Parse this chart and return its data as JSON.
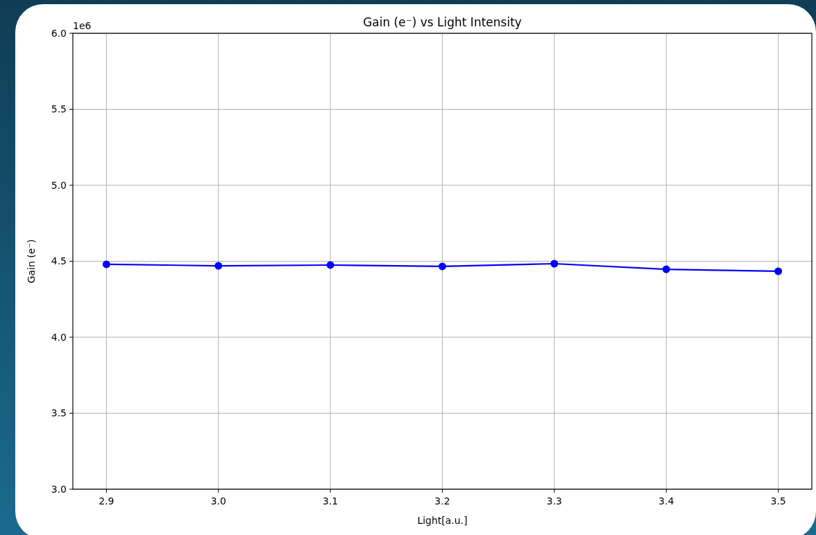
{
  "chart_data": {
    "type": "line",
    "title": "Gain (e⁻) vs Light Intensity",
    "xlabel": "Light[a.u.]",
    "ylabel": "Gain (e⁻)",
    "x": [
      2.9,
      3.0,
      3.1,
      3.2,
      3.3,
      3.4,
      3.5
    ],
    "series": [
      {
        "color": "#0000ff",
        "values": [
          4.48,
          4.47,
          4.475,
          4.466,
          4.484,
          4.447,
          4.434
        ]
      }
    ],
    "xlim": [
      2.87,
      3.53
    ],
    "xticks": [
      {
        "value": 2.9,
        "label": "2.9"
      },
      {
        "value": 3.0,
        "label": "3.0"
      },
      {
        "value": 3.1,
        "label": "3.1"
      },
      {
        "value": 3.2,
        "label": "3.2"
      },
      {
        "value": 3.3,
        "label": "3.3"
      },
      {
        "value": 3.4,
        "label": "3.4"
      },
      {
        "value": 3.5,
        "label": "3.5"
      }
    ],
    "ylim": [
      3.0,
      6.0
    ],
    "yticks": [
      {
        "value": 3.0,
        "label": "3.0"
      },
      {
        "value": 3.5,
        "label": "3.5"
      },
      {
        "value": 4.0,
        "label": "4.0"
      },
      {
        "value": 4.5,
        "label": "4.5"
      },
      {
        "value": 5.0,
        "label": "5.0"
      },
      {
        "value": 5.5,
        "label": "5.5"
      },
      {
        "value": 6.0,
        "label": "6.0"
      }
    ],
    "annotations": [
      "1e6"
    ],
    "grid": true,
    "marker": "circle",
    "line_style": "solid"
  }
}
